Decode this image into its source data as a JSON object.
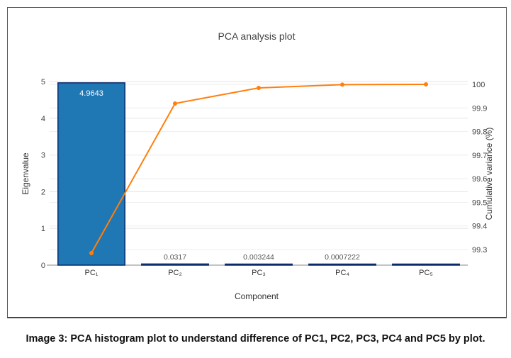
{
  "chart_data": {
    "type": "bar+line",
    "title": "PCA analysis plot",
    "xlabel": "Component",
    "ylabel": "Eigenvalue",
    "y2label": "Cumulative variance (%)",
    "categories": [
      "PC₁",
      "PC₂",
      "PC₃",
      "PC₄",
      "PC₅"
    ],
    "series": [
      {
        "name": "Eigenvalue",
        "type": "bar",
        "axis": "left",
        "values": [
          4.9643,
          0.0317,
          0.003244,
          0.0007222,
          0.0001
        ],
        "labels": [
          "4.9643",
          "0.0317",
          "0.003244",
          "0.0007222",
          ""
        ]
      },
      {
        "name": "Cumulative variance (%)",
        "type": "line",
        "axis": "right",
        "values": [
          99.285,
          99.919,
          99.985,
          99.999,
          100
        ]
      }
    ],
    "ylim": [
      0,
      5
    ],
    "y2lim": [
      99.234,
      100.012
    ],
    "yticks": [
      "0",
      "1",
      "2",
      "3",
      "4",
      "5"
    ],
    "y2ticks": [
      "99.3",
      "99.4",
      "99.5",
      "99.6",
      "99.7",
      "99.8",
      "99.9",
      "100"
    ],
    "grid": true,
    "colors": {
      "bar": "#1f77b4",
      "bar_outline": "#0a2a6b",
      "line": "#ff7f0e"
    }
  },
  "caption": "Image 3: PCA histogram plot to understand difference of PC1, PC2, PC3, PC4 and PC5 by plot."
}
